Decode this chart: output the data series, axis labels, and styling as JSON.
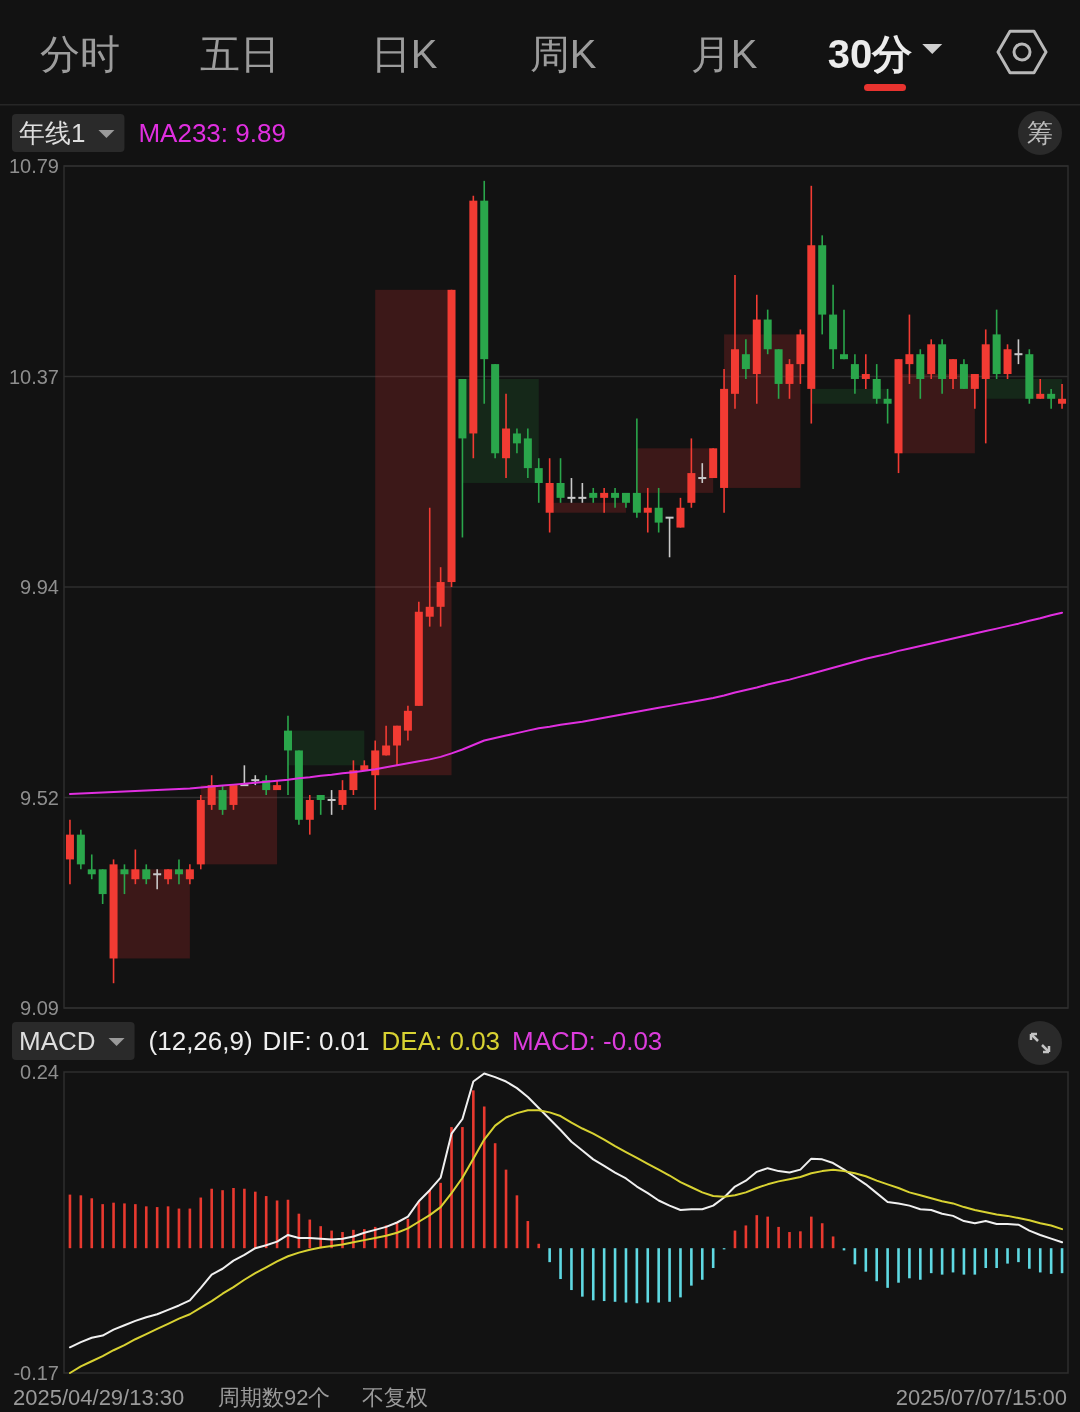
{
  "chart_data": [
    {
      "type": "candlestick",
      "annotations": [
        "分时",
        "五日",
        "日K",
        "周K",
        "月K",
        "30分",
        "年线1",
        "筹"
      ],
      "categories": [
        null,
        null,
        null,
        null,
        null,
        null,
        null,
        null,
        null,
        null,
        null,
        null,
        null,
        null,
        null,
        null,
        null,
        null,
        null,
        null,
        null,
        null,
        null,
        null,
        null,
        null,
        null,
        null,
        null,
        null,
        null,
        null,
        null,
        null,
        null,
        null,
        null,
        null,
        null,
        null,
        null,
        null,
        null,
        null,
        null,
        null,
        null,
        null,
        null,
        null,
        null,
        null,
        null,
        null,
        null,
        null,
        null,
        null,
        null,
        null,
        null,
        null,
        null,
        null,
        null,
        null,
        null,
        null,
        null,
        null,
        null,
        null,
        null,
        null,
        null,
        null,
        null,
        null,
        null,
        null,
        null,
        null,
        null,
        null,
        null,
        null,
        null,
        null,
        null,
        null,
        null,
        null
      ],
      "ohlc": [
        [
          9.39,
          9.47,
          9.34,
          9.44
        ],
        [
          9.44,
          9.45,
          9.37,
          9.38
        ],
        [
          9.37,
          9.4,
          9.35,
          9.36
        ],
        [
          9.37,
          9.37,
          9.3,
          9.32
        ],
        [
          9.19,
          9.39,
          9.14,
          9.38
        ],
        [
          9.37,
          9.38,
          9.32,
          9.36
        ],
        [
          9.35,
          9.41,
          9.34,
          9.37
        ],
        [
          9.37,
          9.38,
          9.34,
          9.35
        ],
        [
          9.36,
          9.37,
          9.33,
          9.36
        ],
        [
          9.35,
          9.37,
          9.34,
          9.37
        ],
        [
          9.37,
          9.39,
          9.34,
          9.36
        ],
        [
          9.35,
          9.38,
          9.34,
          9.37
        ],
        [
          9.38,
          9.52,
          9.37,
          9.51
        ],
        [
          9.5,
          9.56,
          9.49,
          9.54
        ],
        [
          9.53,
          9.54,
          9.48,
          9.49
        ],
        [
          9.5,
          9.54,
          9.49,
          9.54
        ],
        [
          9.54,
          9.58,
          9.54,
          9.54
        ],
        [
          9.55,
          9.56,
          9.54,
          9.55
        ],
        [
          9.55,
          9.56,
          9.52,
          9.53
        ],
        [
          9.53,
          9.55,
          9.53,
          9.54
        ],
        [
          9.65,
          9.68,
          9.52,
          9.61
        ],
        [
          9.61,
          9.61,
          9.46,
          9.47
        ],
        [
          9.47,
          9.52,
          9.44,
          9.51
        ],
        [
          9.52,
          9.52,
          9.48,
          9.51
        ],
        [
          9.51,
          9.53,
          9.48,
          9.51
        ],
        [
          9.5,
          9.55,
          9.49,
          9.53
        ],
        [
          9.53,
          9.59,
          9.52,
          9.57
        ],
        [
          9.57,
          9.59,
          9.57,
          9.58
        ],
        [
          9.56,
          9.63,
          9.49,
          9.61
        ],
        [
          9.6,
          9.66,
          9.6,
          9.62
        ],
        [
          9.62,
          9.66,
          9.58,
          9.66
        ],
        [
          9.65,
          9.7,
          9.63,
          9.69
        ],
        [
          9.7,
          9.91,
          9.7,
          9.89
        ],
        [
          9.88,
          10.1,
          9.86,
          9.9
        ],
        [
          9.9,
          9.98,
          9.86,
          9.95
        ],
        [
          9.95,
          10.54,
          9.94,
          10.54
        ],
        [
          10.36,
          10.36,
          10.04,
          10.24
        ],
        [
          10.25,
          10.73,
          10.2,
          10.72
        ],
        [
          10.72,
          10.76,
          10.31,
          10.4
        ],
        [
          10.39,
          10.39,
          10.2,
          10.21
        ],
        [
          10.2,
          10.33,
          10.16,
          10.26
        ],
        [
          10.25,
          10.26,
          10.21,
          10.23
        ],
        [
          10.24,
          10.26,
          10.16,
          10.18
        ],
        [
          10.18,
          10.2,
          10.11,
          10.15
        ],
        [
          10.09,
          10.2,
          10.05,
          10.15
        ],
        [
          10.15,
          10.2,
          10.11,
          10.12
        ],
        [
          10.12,
          10.16,
          10.11,
          10.12
        ],
        [
          10.12,
          10.15,
          10.11,
          10.12
        ],
        [
          10.13,
          10.14,
          10.11,
          10.12
        ],
        [
          10.12,
          10.14,
          10.09,
          10.13
        ],
        [
          10.13,
          10.14,
          10.1,
          10.12
        ],
        [
          10.13,
          10.13,
          10.1,
          10.11
        ],
        [
          10.13,
          10.28,
          10.08,
          10.09
        ],
        [
          10.09,
          10.14,
          10.05,
          10.1
        ],
        [
          10.1,
          10.14,
          10.05,
          10.07
        ],
        [
          10.08,
          10.08,
          10.0,
          10.08
        ],
        [
          10.06,
          10.12,
          10.06,
          10.1
        ],
        [
          10.11,
          10.24,
          10.1,
          10.17
        ],
        [
          10.16,
          10.19,
          10.15,
          10.16
        ],
        [
          10.16,
          10.22,
          10.16,
          10.22
        ],
        [
          10.14,
          10.38,
          10.09,
          10.34
        ],
        [
          10.33,
          10.57,
          10.3,
          10.42
        ],
        [
          10.41,
          10.44,
          10.36,
          10.38
        ],
        [
          10.37,
          10.53,
          10.31,
          10.48
        ],
        [
          10.48,
          10.5,
          10.41,
          10.42
        ],
        [
          10.42,
          10.42,
          10.32,
          10.35
        ],
        [
          10.35,
          10.4,
          10.32,
          10.39
        ],
        [
          10.39,
          10.46,
          10.35,
          10.45
        ],
        [
          10.34,
          10.75,
          10.27,
          10.63
        ],
        [
          10.63,
          10.65,
          10.45,
          10.49
        ],
        [
          10.49,
          10.55,
          10.38,
          10.42
        ],
        [
          10.41,
          10.5,
          10.4,
          10.4
        ],
        [
          10.39,
          10.41,
          10.33,
          10.36
        ],
        [
          10.36,
          10.41,
          10.34,
          10.37
        ],
        [
          10.36,
          10.39,
          10.31,
          10.32
        ],
        [
          10.32,
          10.34,
          10.27,
          10.31
        ],
        [
          10.21,
          10.4,
          10.17,
          10.4
        ],
        [
          10.39,
          10.49,
          10.35,
          10.41
        ],
        [
          10.41,
          10.42,
          10.32,
          10.36
        ],
        [
          10.37,
          10.44,
          10.36,
          10.43
        ],
        [
          10.43,
          10.44,
          10.33,
          10.36
        ],
        [
          10.36,
          10.4,
          10.34,
          10.4
        ],
        [
          10.39,
          10.4,
          10.34,
          10.34
        ],
        [
          10.34,
          10.37,
          10.3,
          10.37
        ],
        [
          10.36,
          10.46,
          10.23,
          10.43
        ],
        [
          10.45,
          10.5,
          10.36,
          10.37
        ],
        [
          10.37,
          10.43,
          10.36,
          10.42
        ],
        [
          10.41,
          10.44,
          10.39,
          10.41
        ],
        [
          10.41,
          10.42,
          10.31,
          10.32
        ],
        [
          10.32,
          10.36,
          10.32,
          10.33
        ],
        [
          10.33,
          10.34,
          10.3,
          10.32
        ],
        [
          10.31,
          10.35,
          10.3,
          10.32
        ]
      ],
      "series": [
        {
          "type": "line",
          "name": "MA233: 9.89",
          "color": "#e02fe0",
          "values": [
            9.522,
            9.523,
            9.524,
            9.525,
            9.526,
            9.527,
            9.528,
            9.529,
            9.53,
            9.531,
            9.532,
            9.533,
            9.535,
            9.537,
            9.539,
            9.541,
            9.543,
            9.545,
            9.547,
            9.549,
            9.551,
            9.554,
            9.556,
            9.559,
            9.561,
            9.564,
            9.566,
            9.569,
            9.572,
            9.576,
            9.58,
            9.584,
            9.588,
            9.592,
            9.597,
            9.604,
            9.612,
            9.621,
            9.63,
            9.635,
            9.64,
            9.645,
            9.65,
            9.655,
            9.658,
            9.662,
            9.665,
            9.668,
            9.672,
            9.676,
            9.68,
            9.684,
            9.688,
            9.692,
            9.696,
            9.7,
            9.704,
            9.708,
            9.712,
            9.716,
            9.721,
            9.727,
            9.732,
            9.737,
            9.743,
            9.748,
            9.753,
            9.759,
            9.765,
            9.771,
            9.777,
            9.783,
            9.789,
            9.795,
            9.8,
            9.805,
            9.811,
            9.816,
            9.821,
            9.826,
            9.831,
            9.836,
            9.841,
            9.846,
            9.851,
            9.856,
            9.861,
            9.866,
            9.872,
            9.877,
            9.883,
            9.888
          ]
        }
      ],
      "ylim": [
        9.09,
        10.79
      ],
      "yticks": [
        10.79,
        {
          "value": 10.365,
          "label": "10.37"
        },
        9.94,
        {
          "value": 9.515,
          "label": "9.52"
        },
        9.09
      ],
      "grid": "y",
      "legend": "top left",
      "tick_labels": "y"
    },
    {
      "type": "bar",
      "annotations": [
        "MACD",
        "(12,26,9)",
        "MACD: -0.03",
        "2025/04/29/13:30",
        "周期数92个",
        "不复权",
        "2025/07/07/15:00"
      ],
      "categories": [
        null,
        null,
        null,
        null,
        null,
        null,
        null,
        null,
        null,
        null,
        null,
        null,
        null,
        null,
        null,
        null,
        null,
        null,
        null,
        null,
        null,
        null,
        null,
        null,
        null,
        null,
        null,
        null,
        null,
        null,
        null,
        null,
        null,
        null,
        null,
        null,
        null,
        null,
        null,
        null,
        null,
        null,
        null,
        null,
        null,
        null,
        null,
        null,
        null,
        null,
        null,
        null,
        null,
        null,
        null,
        null,
        null,
        null,
        null,
        null,
        null,
        null,
        null,
        null,
        null,
        null,
        null,
        null,
        null,
        null,
        null,
        null,
        null,
        null,
        null,
        null,
        null,
        null,
        null,
        null,
        null,
        null,
        null,
        null,
        null,
        null,
        null,
        null,
        null,
        null,
        null,
        null
      ],
      "series": [
        {
          "type": "bar",
          "colors": [
            "#e8392f",
            "#e8392f",
            "#e8392f",
            "#e8392f",
            "#e8392f",
            "#e8392f",
            "#e8392f",
            "#e8392f",
            "#e8392f",
            "#e8392f",
            "#e8392f",
            "#e8392f",
            "#e8392f",
            "#e8392f",
            "#e8392f",
            "#e8392f",
            "#e8392f",
            "#e8392f",
            "#e8392f",
            "#e8392f",
            "#e8392f",
            "#e8392f",
            "#e8392f",
            "#e8392f",
            "#e8392f",
            "#e8392f",
            "#e8392f",
            "#e8392f",
            "#e8392f",
            "#e8392f",
            "#e8392f",
            "#e8392f",
            "#e8392f",
            "#e8392f",
            "#e8392f",
            "#e8392f",
            "#e8392f",
            "#e8392f",
            "#e8392f",
            "#e8392f",
            "#e8392f",
            "#e8392f",
            "#e8392f",
            "#e8392f",
            "#5fd9e3",
            "#5fd9e3",
            "#5fd9e3",
            "#5fd9e3",
            "#5fd9e3",
            "#5fd9e3",
            "#5fd9e3",
            "#5fd9e3",
            "#5fd9e3",
            "#5fd9e3",
            "#5fd9e3",
            "#5fd9e3",
            "#5fd9e3",
            "#5fd9e3",
            "#5fd9e3",
            "#5fd9e3",
            "#5fd9e3",
            "#e8392f",
            "#e8392f",
            "#e8392f",
            "#e8392f",
            "#e8392f",
            "#e8392f",
            "#e8392f",
            "#e8392f",
            "#e8392f",
            "#e8392f",
            "#5fd9e3",
            "#5fd9e3",
            "#5fd9e3",
            "#5fd9e3",
            "#5fd9e3",
            "#5fd9e3",
            "#5fd9e3",
            "#5fd9e3",
            "#5fd9e3",
            "#5fd9e3",
            "#5fd9e3",
            "#5fd9e3",
            "#5fd9e3",
            "#5fd9e3",
            "#5fd9e3",
            "#5fd9e3",
            "#5fd9e3",
            "#5fd9e3",
            "#5fd9e3",
            "#5fd9e3",
            "#5fd9e3"
          ],
          "values": [
            0.073,
            0.072,
            0.068,
            0.06,
            0.062,
            0.061,
            0.06,
            0.057,
            0.056,
            0.057,
            0.054,
            0.054,
            0.069,
            0.081,
            0.079,
            0.082,
            0.081,
            0.077,
            0.071,
            0.065,
            0.066,
            0.047,
            0.039,
            0.03,
            0.024,
            0.022,
            0.025,
            0.026,
            0.029,
            0.031,
            0.035,
            0.04,
            0.064,
            0.079,
            0.089,
            0.165,
            0.165,
            0.215,
            0.193,
            0.143,
            0.107,
            0.072,
            0.037,
            0.006,
            -0.019,
            -0.042,
            -0.057,
            -0.066,
            -0.071,
            -0.072,
            -0.073,
            -0.074,
            -0.075,
            -0.074,
            -0.074,
            -0.073,
            -0.067,
            -0.051,
            -0.043,
            -0.027,
            -0.001,
            0.024,
            0.031,
            0.045,
            0.043,
            0.029,
            0.022,
            0.023,
            0.043,
            0.034,
            0.016,
            -0.003,
            -0.022,
            -0.032,
            -0.045,
            -0.054,
            -0.047,
            -0.041,
            -0.043,
            -0.034,
            -0.036,
            -0.033,
            -0.036,
            -0.036,
            -0.027,
            -0.027,
            -0.021,
            -0.019,
            -0.028,
            -0.033,
            -0.035,
            -0.034
          ]
        },
        {
          "type": "line",
          "name": "DIF: 0.01",
          "color": "#f0f0f0",
          "values": [
            -0.135,
            -0.128,
            -0.122,
            -0.119,
            -0.111,
            -0.105,
            -0.099,
            -0.094,
            -0.09,
            -0.084,
            -0.078,
            -0.071,
            -0.054,
            -0.036,
            -0.028,
            -0.017,
            -0.009,
            0.0,
            0.004,
            0.009,
            0.018,
            0.014,
            0.014,
            0.013,
            0.012,
            0.013,
            0.016,
            0.021,
            0.025,
            0.029,
            0.035,
            0.043,
            0.064,
            0.079,
            0.096,
            0.156,
            0.176,
            0.227,
            0.238,
            0.233,
            0.227,
            0.218,
            0.206,
            0.191,
            0.176,
            0.161,
            0.145,
            0.133,
            0.121,
            0.112,
            0.103,
            0.095,
            0.084,
            0.075,
            0.065,
            0.058,
            0.052,
            0.053,
            0.053,
            0.058,
            0.069,
            0.084,
            0.092,
            0.104,
            0.109,
            0.105,
            0.103,
            0.107,
            0.122,
            0.121,
            0.116,
            0.107,
            0.097,
            0.087,
            0.075,
            0.063,
            0.061,
            0.058,
            0.053,
            0.052,
            0.047,
            0.044,
            0.037,
            0.034,
            0.037,
            0.033,
            0.033,
            0.032,
            0.024,
            0.018,
            0.013,
            0.008
          ]
        },
        {
          "type": "line",
          "name": "DEA: 0.03",
          "color": "#d8d232",
          "values": [
            -0.17,
            -0.161,
            -0.154,
            -0.147,
            -0.139,
            -0.132,
            -0.124,
            -0.117,
            -0.11,
            -0.103,
            -0.096,
            -0.09,
            -0.081,
            -0.072,
            -0.062,
            -0.053,
            -0.043,
            -0.034,
            -0.026,
            -0.018,
            -0.011,
            -0.006,
            -0.002,
            0.001,
            0.003,
            0.005,
            0.008,
            0.011,
            0.014,
            0.017,
            0.021,
            0.027,
            0.036,
            0.045,
            0.056,
            0.075,
            0.096,
            0.122,
            0.148,
            0.167,
            0.178,
            0.184,
            0.188,
            0.188,
            0.185,
            0.18,
            0.171,
            0.163,
            0.156,
            0.148,
            0.139,
            0.131,
            0.123,
            0.115,
            0.107,
            0.099,
            0.09,
            0.083,
            0.076,
            0.071,
            0.07,
            0.072,
            0.076,
            0.082,
            0.087,
            0.091,
            0.094,
            0.097,
            0.102,
            0.105,
            0.107,
            0.105,
            0.102,
            0.098,
            0.092,
            0.087,
            0.082,
            0.076,
            0.072,
            0.068,
            0.064,
            0.061,
            0.056,
            0.052,
            0.049,
            0.046,
            0.044,
            0.041,
            0.038,
            0.034,
            0.031,
            0.026
          ]
        }
      ],
      "ylim": [
        -0.17,
        0.24
      ],
      "yticks": [
        0.24,
        -0.17
      ],
      "legend": "top left",
      "tick_labels": "y"
    }
  ]
}
